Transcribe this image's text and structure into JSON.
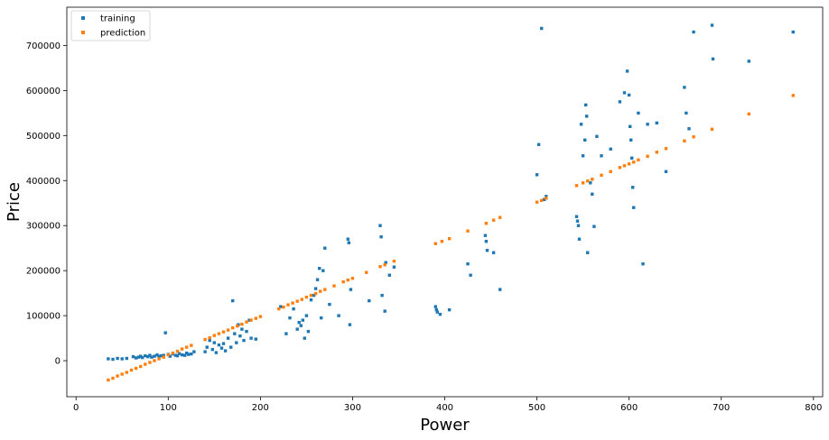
{
  "chart_data": {
    "type": "scatter",
    "xlabel": "Power",
    "ylabel": "Price",
    "xlim": [
      -10,
      810
    ],
    "ylim": [
      -80000,
      785000
    ],
    "x_ticks": [
      0,
      100,
      200,
      300,
      400,
      500,
      600,
      700,
      800
    ],
    "y_ticks": [
      0,
      100000,
      200000,
      300000,
      400000,
      500000,
      600000,
      700000
    ],
    "grid": false,
    "legend_position": "top-left",
    "series": [
      {
        "name": "training",
        "color": "#1f77b4",
        "points": [
          [
            35,
            4000
          ],
          [
            40,
            3000
          ],
          [
            45,
            5000
          ],
          [
            50,
            4000
          ],
          [
            55,
            5000
          ],
          [
            62,
            9000
          ],
          [
            65,
            6000
          ],
          [
            68,
            8000
          ],
          [
            70,
            10000
          ],
          [
            72,
            7000
          ],
          [
            75,
            11000
          ],
          [
            78,
            9000
          ],
          [
            80,
            12000
          ],
          [
            82,
            8000
          ],
          [
            85,
            10000
          ],
          [
            88,
            13000
          ],
          [
            90,
            9000
          ],
          [
            92,
            11000
          ],
          [
            95,
            12000
          ],
          [
            97,
            62000
          ],
          [
            100,
            14000
          ],
          [
            102,
            10000
          ],
          [
            105,
            15000
          ],
          [
            108,
            12000
          ],
          [
            110,
            11000
          ],
          [
            112,
            16000
          ],
          [
            115,
            13000
          ],
          [
            118,
            12000
          ],
          [
            120,
            17000
          ],
          [
            122,
            14000
          ],
          [
            125,
            15000
          ],
          [
            128,
            20000
          ],
          [
            140,
            20000
          ],
          [
            142,
            30000
          ],
          [
            145,
            45000
          ],
          [
            148,
            25000
          ],
          [
            150,
            40000
          ],
          [
            152,
            18000
          ],
          [
            155,
            35000
          ],
          [
            158,
            28000
          ],
          [
            160,
            38000
          ],
          [
            162,
            22000
          ],
          [
            165,
            50000
          ],
          [
            168,
            30000
          ],
          [
            170,
            133000
          ],
          [
            172,
            60000
          ],
          [
            174,
            40000
          ],
          [
            176,
            80000
          ],
          [
            178,
            55000
          ],
          [
            180,
            70000
          ],
          [
            182,
            45000
          ],
          [
            185,
            65000
          ],
          [
            188,
            90000
          ],
          [
            190,
            50000
          ],
          [
            195,
            48000
          ],
          [
            222,
            120000
          ],
          [
            228,
            60000
          ],
          [
            232,
            95000
          ],
          [
            236,
            115000
          ],
          [
            240,
            70000
          ],
          [
            242,
            85000
          ],
          [
            244,
            78000
          ],
          [
            246,
            90000
          ],
          [
            248,
            50000
          ],
          [
            250,
            100000
          ],
          [
            252,
            65000
          ],
          [
            255,
            135000
          ],
          [
            258,
            145000
          ],
          [
            260,
            160000
          ],
          [
            262,
            180000
          ],
          [
            264,
            205000
          ],
          [
            266,
            95000
          ],
          [
            268,
            200000
          ],
          [
            270,
            250000
          ],
          [
            275,
            125000
          ],
          [
            285,
            100000
          ],
          [
            295,
            270000
          ],
          [
            296,
            262000
          ],
          [
            298,
            158000
          ],
          [
            297,
            80000
          ],
          [
            318,
            133000
          ],
          [
            330,
            300000
          ],
          [
            331,
            275000
          ],
          [
            332,
            145000
          ],
          [
            336,
            218000
          ],
          [
            335,
            110000
          ],
          [
            340,
            190000
          ],
          [
            345,
            208000
          ],
          [
            390,
            120000
          ],
          [
            391,
            113000
          ],
          [
            392,
            108000
          ],
          [
            395,
            103000
          ],
          [
            405,
            113000
          ],
          [
            425,
            215000
          ],
          [
            428,
            190000
          ],
          [
            444,
            278000
          ],
          [
            445,
            265000
          ],
          [
            446,
            245000
          ],
          [
            453,
            240000
          ],
          [
            460,
            158000
          ],
          [
            500,
            413000
          ],
          [
            502,
            480000
          ],
          [
            505,
            738000
          ],
          [
            508,
            358000
          ],
          [
            510,
            365000
          ],
          [
            543,
            320000
          ],
          [
            544,
            310000
          ],
          [
            545,
            300000
          ],
          [
            546,
            270000
          ],
          [
            548,
            525000
          ],
          [
            550,
            455000
          ],
          [
            552,
            490000
          ],
          [
            553,
            568000
          ],
          [
            554,
            543000
          ],
          [
            555,
            240000
          ],
          [
            558,
            395000
          ],
          [
            560,
            370000
          ],
          [
            562,
            298000
          ],
          [
            565,
            498000
          ],
          [
            570,
            455000
          ],
          [
            580,
            470000
          ],
          [
            590,
            575000
          ],
          [
            595,
            595000
          ],
          [
            598,
            643000
          ],
          [
            600,
            590000
          ],
          [
            601,
            520000
          ],
          [
            602,
            490000
          ],
          [
            603,
            450000
          ],
          [
            604,
            385000
          ],
          [
            605,
            340000
          ],
          [
            610,
            550000
          ],
          [
            615,
            215000
          ],
          [
            620,
            525000
          ],
          [
            630,
            528000
          ],
          [
            640,
            420000
          ],
          [
            660,
            607000
          ],
          [
            662,
            550000
          ],
          [
            665,
            515000
          ],
          [
            670,
            730000
          ],
          [
            690,
            745000
          ],
          [
            691,
            670000
          ],
          [
            730,
            665000
          ],
          [
            778,
            730000
          ]
        ]
      },
      {
        "name": "prediction",
        "color": "#ff7f0e",
        "points": [
          [
            35,
            -43000
          ],
          [
            40,
            -39000
          ],
          [
            45,
            -34000
          ],
          [
            50,
            -30000
          ],
          [
            55,
            -26000
          ],
          [
            60,
            -21000
          ],
          [
            65,
            -17000
          ],
          [
            70,
            -13000
          ],
          [
            75,
            -8000
          ],
          [
            80,
            -4000
          ],
          [
            85,
            0
          ],
          [
            90,
            4000
          ],
          [
            95,
            8000
          ],
          [
            100,
            13000
          ],
          [
            105,
            17000
          ],
          [
            110,
            21000
          ],
          [
            115,
            26000
          ],
          [
            120,
            30000
          ],
          [
            125,
            34000
          ],
          [
            140,
            47000
          ],
          [
            145,
            51000
          ],
          [
            150,
            56000
          ],
          [
            155,
            60000
          ],
          [
            160,
            64000
          ],
          [
            165,
            68000
          ],
          [
            170,
            73000
          ],
          [
            175,
            77000
          ],
          [
            180,
            81000
          ],
          [
            185,
            86000
          ],
          [
            190,
            90000
          ],
          [
            195,
            94000
          ],
          [
            200,
            98000
          ],
          [
            220,
            115000
          ],
          [
            225,
            119000
          ],
          [
            230,
            124000
          ],
          [
            235,
            128000
          ],
          [
            240,
            132000
          ],
          [
            245,
            136000
          ],
          [
            250,
            141000
          ],
          [
            255,
            145000
          ],
          [
            260,
            149000
          ],
          [
            265,
            154000
          ],
          [
            270,
            158000
          ],
          [
            280,
            166000
          ],
          [
            290,
            175000
          ],
          [
            295,
            179000
          ],
          [
            300,
            183000
          ],
          [
            315,
            196000
          ],
          [
            330,
            209000
          ],
          [
            335,
            213000
          ],
          [
            345,
            221000
          ],
          [
            390,
            260000
          ],
          [
            397,
            265000
          ],
          [
            405,
            271000
          ],
          [
            425,
            288000
          ],
          [
            445,
            305000
          ],
          [
            453,
            312000
          ],
          [
            460,
            318000
          ],
          [
            500,
            352000
          ],
          [
            505,
            356000
          ],
          [
            510,
            361000
          ],
          [
            543,
            389000
          ],
          [
            550,
            395000
          ],
          [
            555,
            399000
          ],
          [
            560,
            403000
          ],
          [
            570,
            412000
          ],
          [
            580,
            420000
          ],
          [
            590,
            429000
          ],
          [
            595,
            433000
          ],
          [
            600,
            437000
          ],
          [
            605,
            441000
          ],
          [
            610,
            446000
          ],
          [
            620,
            454000
          ],
          [
            630,
            463000
          ],
          [
            640,
            471000
          ],
          [
            660,
            488000
          ],
          [
            670,
            497000
          ],
          [
            690,
            514000
          ],
          [
            730,
            548000
          ],
          [
            778,
            589000
          ]
        ]
      }
    ]
  }
}
